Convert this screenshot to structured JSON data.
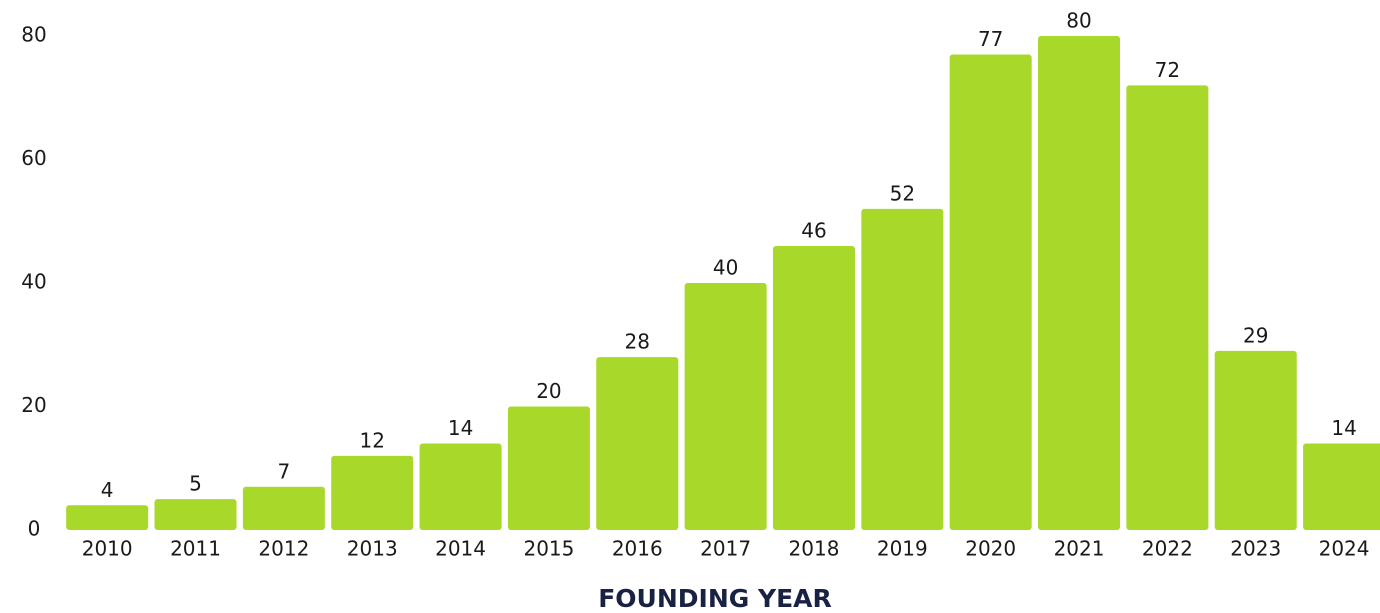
{
  "chart_data": {
    "type": "bar",
    "x_label": "FOUNDING YEAR",
    "categories": [
      "2010",
      "2011",
      "2012",
      "2013",
      "2014",
      "2015",
      "2016",
      "2017",
      "2018",
      "2019",
      "2020",
      "2021",
      "2022",
      "2023",
      "2024"
    ],
    "values": [
      4,
      5,
      7,
      12,
      14,
      20,
      28,
      40,
      46,
      52,
      77,
      80,
      72,
      29,
      14
    ],
    "color": "#a8d82a",
    "ylim": [
      0,
      80
    ],
    "yticks": [
      0,
      20,
      40,
      60,
      80
    ],
    "grid": false
  }
}
